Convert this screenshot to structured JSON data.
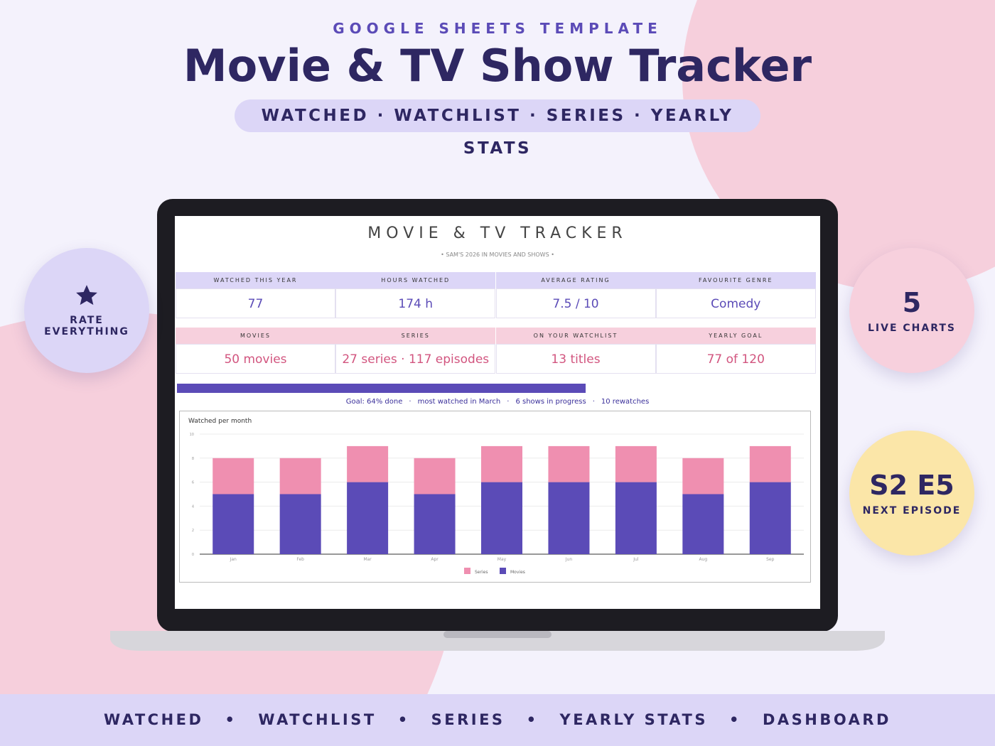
{
  "header": {
    "eyebrow": "GOOGLE SHEETS TEMPLATE",
    "title": "Movie & TV Show Tracker",
    "features": "WATCHED · WATCHLIST · SERIES · YEARLY STATS"
  },
  "badges": {
    "left": [
      "RATE",
      "EVERYTHING"
    ],
    "charts": {
      "number": "5",
      "label": "LIVE CHARTS"
    },
    "episode": {
      "number": "S2 E5",
      "label": "NEXT EPISODE"
    }
  },
  "sheet": {
    "title": "MOVIE & TV TRACKER",
    "subtitle": "• SAM'S 2026 IN MOVIES AND SHOWS •",
    "stats": [
      [
        {
          "label": "WATCHED THIS YEAR",
          "value": "77"
        },
        {
          "label": "HOURS WATCHED",
          "value": "174 h"
        },
        {
          "label": "AVERAGE RATING",
          "value": "7.5 / 10"
        },
        {
          "label": "FAVOURITE GENRE",
          "value": "Comedy"
        }
      ],
      [
        {
          "label": "MOVIES",
          "value": "50 movies"
        },
        {
          "label": "SERIES",
          "value": "27 series · 117 episodes"
        },
        {
          "label": "ON YOUR WATCHLIST",
          "value": "13 titles"
        },
        {
          "label": "YEARLY GOAL",
          "value": "77 of 120"
        }
      ]
    ],
    "goal_progress": 64,
    "highlights": [
      "Goal: 64% done",
      "most watched in March",
      "6 shows in progress",
      "10 rewatches"
    ],
    "chart": {
      "type": "bar",
      "stacked": true,
      "title": "Watched per month",
      "categories": [
        "Jan",
        "Feb",
        "Mar",
        "Apr",
        "May",
        "Jun",
        "Jul",
        "Aug",
        "Sep"
      ],
      "series": [
        {
          "name": "Movies",
          "color": "#5b4bb7",
          "values": [
            5,
            5,
            6,
            5,
            6,
            6,
            6,
            5,
            6
          ]
        },
        {
          "name": "Series",
          "color": "#ef8fb0",
          "values": [
            3,
            3,
            3,
            3,
            3,
            3,
            3,
            3,
            3
          ]
        }
      ],
      "ylim": [
        0,
        10
      ],
      "yticks": [
        0,
        2,
        4,
        6,
        8,
        10
      ],
      "grid": true
    }
  },
  "footer": {
    "nav": [
      "WATCHED",
      "WATCHLIST",
      "SERIES",
      "YEARLY STATS",
      "DASHBOARD"
    ]
  }
}
